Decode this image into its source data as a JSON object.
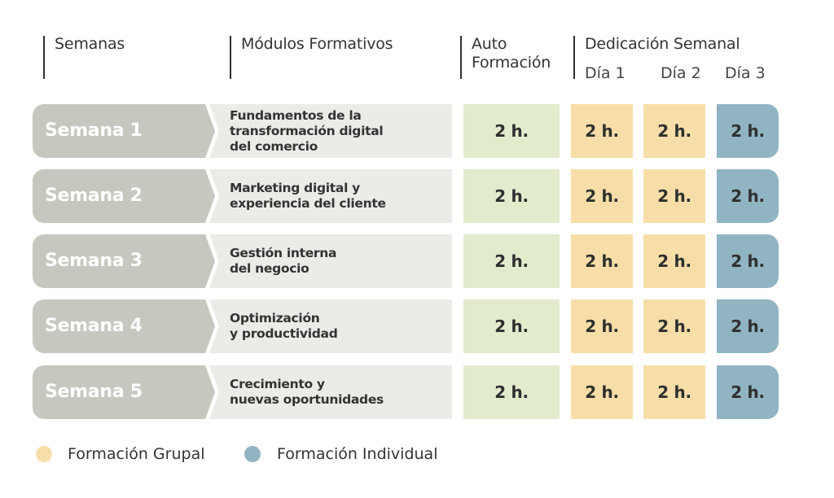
{
  "header": {
    "weeks": "Semanas",
    "modules": "Módulos Formativos",
    "auto_line1": "Auto",
    "auto_line2": "Formación",
    "dedication": "Dedicación Semanal",
    "day1": "Día 1",
    "day2": "Día 2",
    "day3": "Día 3"
  },
  "rows": [
    {
      "week": "Semana 1",
      "module": "Fundamentos de la\ntransformación digital\ndel comercio",
      "auto": "2 h.",
      "day1": "2 h.",
      "day2": "2 h.",
      "day3": "2 h."
    },
    {
      "week": "Semana 2",
      "module": "Marketing digital y\nexperiencia del cliente",
      "auto": "2 h.",
      "day1": "2 h.",
      "day2": "2 h.",
      "day3": "2 h."
    },
    {
      "week": "Semana 3",
      "module": "Gestión interna\ndel negocio",
      "auto": "2 h.",
      "day1": "2 h.",
      "day2": "2 h.",
      "day3": "2 h."
    },
    {
      "week": "Semana 4",
      "module": "Optimización\ny productividad",
      "auto": "2 h.",
      "day1": "2 h.",
      "day2": "2 h.",
      "day3": "2 h."
    },
    {
      "week": "Semana 5",
      "module": "Crecimiento y\nnuevas oportunidades",
      "auto": "2 h.",
      "day1": "2 h.",
      "day2": "2 h.",
      "day3": "2 h."
    }
  ],
  "legend": {
    "group": "Formación Grupal",
    "individual": "Formación Individual"
  },
  "colors": {
    "week_bg": "#c5c8bf",
    "module_bg": "#ebece8",
    "auto_bg": "#e3ebcd",
    "group_bg": "#f7dea8",
    "individual_bg": "#90b4c2"
  }
}
